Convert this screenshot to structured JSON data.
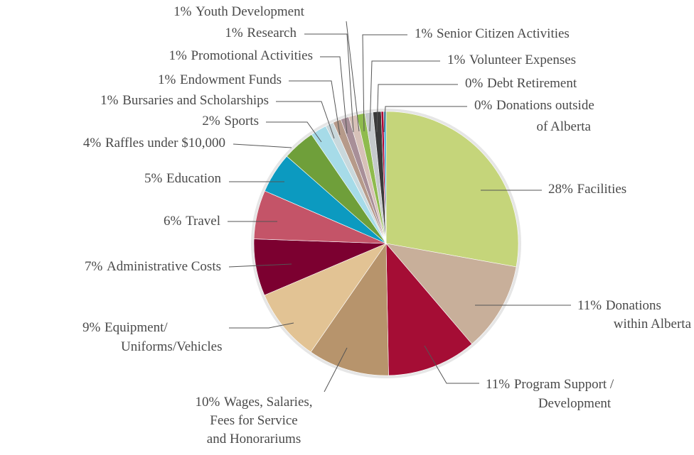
{
  "chart_data": {
    "type": "pie",
    "categories": [
      [
        "Facilities"
      ],
      [
        "Donations",
        "within Alberta"
      ],
      [
        "Program Support /",
        "Development"
      ],
      [
        "Wages, Salaries,",
        "Fees for Service",
        "and Honorariums"
      ],
      [
        "Equipment/",
        "Uniforms/Vehicles"
      ],
      [
        "Administrative Costs"
      ],
      [
        "Travel"
      ],
      [
        "Education"
      ],
      [
        "Raffles under $10,000"
      ],
      [
        "Sports"
      ],
      [
        "Bursaries and Scholarships"
      ],
      [
        "Endowment Funds"
      ],
      [
        "Promotional Activities"
      ],
      [
        "Research"
      ],
      [
        "Youth Development"
      ],
      [
        "Senior Citizen Activities"
      ],
      [
        "Volunteer Expenses"
      ],
      [
        "Debt Retirement"
      ],
      [
        "Donations outside",
        "of Alberta"
      ]
    ],
    "values": [
      28,
      11,
      11,
      10,
      9,
      7,
      6,
      5,
      4,
      2,
      1,
      1,
      1,
      1,
      1,
      1,
      1,
      0.3,
      0.3
    ],
    "value_labels": [
      "28%",
      "11%",
      "11%",
      "10%",
      "9%",
      "7%",
      "6%",
      "5%",
      "4%",
      "2%",
      "1%",
      "1%",
      "1%",
      "1%",
      "1%",
      "1%",
      "1%",
      "0%",
      "0%"
    ],
    "colors": [
      "#c5d57a",
      "#c8af9a",
      "#a50d35",
      "#b7946c",
      "#e2c394",
      "#7c0030",
      "#c45468",
      "#0c9ac0",
      "#6f9f3a",
      "#a6dbe8",
      "#c9d8dc",
      "#b69a8a",
      "#a88f98",
      "#d7c1b8",
      "#8fbb4e",
      "#c5c9cc",
      "#3a3a3a",
      "#b0002f",
      "#45a9d3"
    ]
  }
}
